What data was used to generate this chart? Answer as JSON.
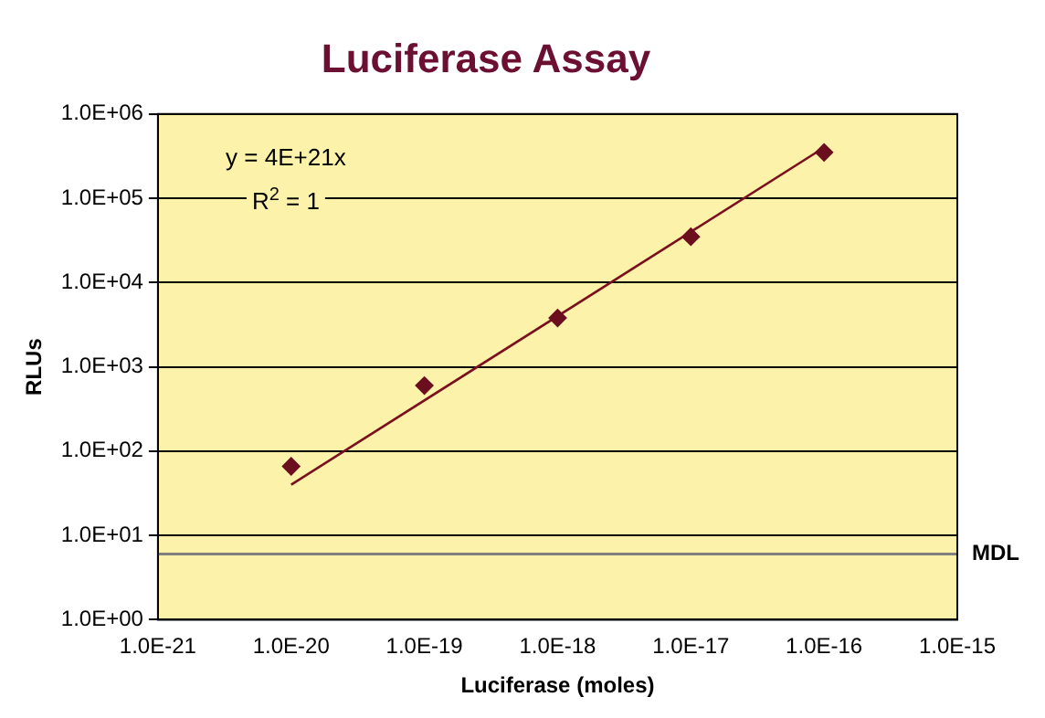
{
  "chart_data": {
    "type": "scatter",
    "title": "Luciferase Assay",
    "xlabel": "Luciferase (moles)",
    "ylabel": "RLUs",
    "log": "xy",
    "xlim": [
      1e-21,
      1e-15
    ],
    "xticks": [
      {
        "value": 1e-21,
        "label": "1.0E-21"
      },
      {
        "value": 1e-20,
        "label": "1.0E-20"
      },
      {
        "value": 1e-19,
        "label": "1.0E-19"
      },
      {
        "value": 1e-18,
        "label": "1.0E-18"
      },
      {
        "value": 1e-17,
        "label": "1.0E-17"
      },
      {
        "value": 1e-16,
        "label": "1.0E-16"
      },
      {
        "value": 1e-15,
        "label": "1.0E-15"
      }
    ],
    "ylim": [
      1,
      1000000
    ],
    "yticks": [
      {
        "value": 1,
        "label": "1.0E+00"
      },
      {
        "value": 10,
        "label": "1.0E+01"
      },
      {
        "value": 100,
        "label": "1.0E+02"
      },
      {
        "value": 1000,
        "label": "1.0E+03"
      },
      {
        "value": 10000,
        "label": "1.0E+04"
      },
      {
        "value": 100000,
        "label": "1.0E+05"
      },
      {
        "value": 1000000,
        "label": "1.0E+06"
      }
    ],
    "grid": "y",
    "legend": false,
    "marker": "diamond",
    "series": [
      {
        "type": "scatter",
        "color": "#6b0f1f",
        "x": [
          1e-20,
          1e-19,
          1e-18,
          1e-17,
          1e-16
        ],
        "values": [
          66,
          600,
          3800,
          35000,
          350000
        ]
      },
      {
        "type": "line",
        "color": "#7a0f1f",
        "x": [
          1e-20,
          1e-16
        ],
        "values": [
          40,
          400000
        ],
        "marker": "none"
      }
    ],
    "ref_lines": [
      {
        "axis": "y",
        "value": 6,
        "label": "MDL",
        "color": "#808080"
      }
    ],
    "annotations": [
      "y = 4E+21x",
      "R$^{2}$ = 1"
    ]
  }
}
